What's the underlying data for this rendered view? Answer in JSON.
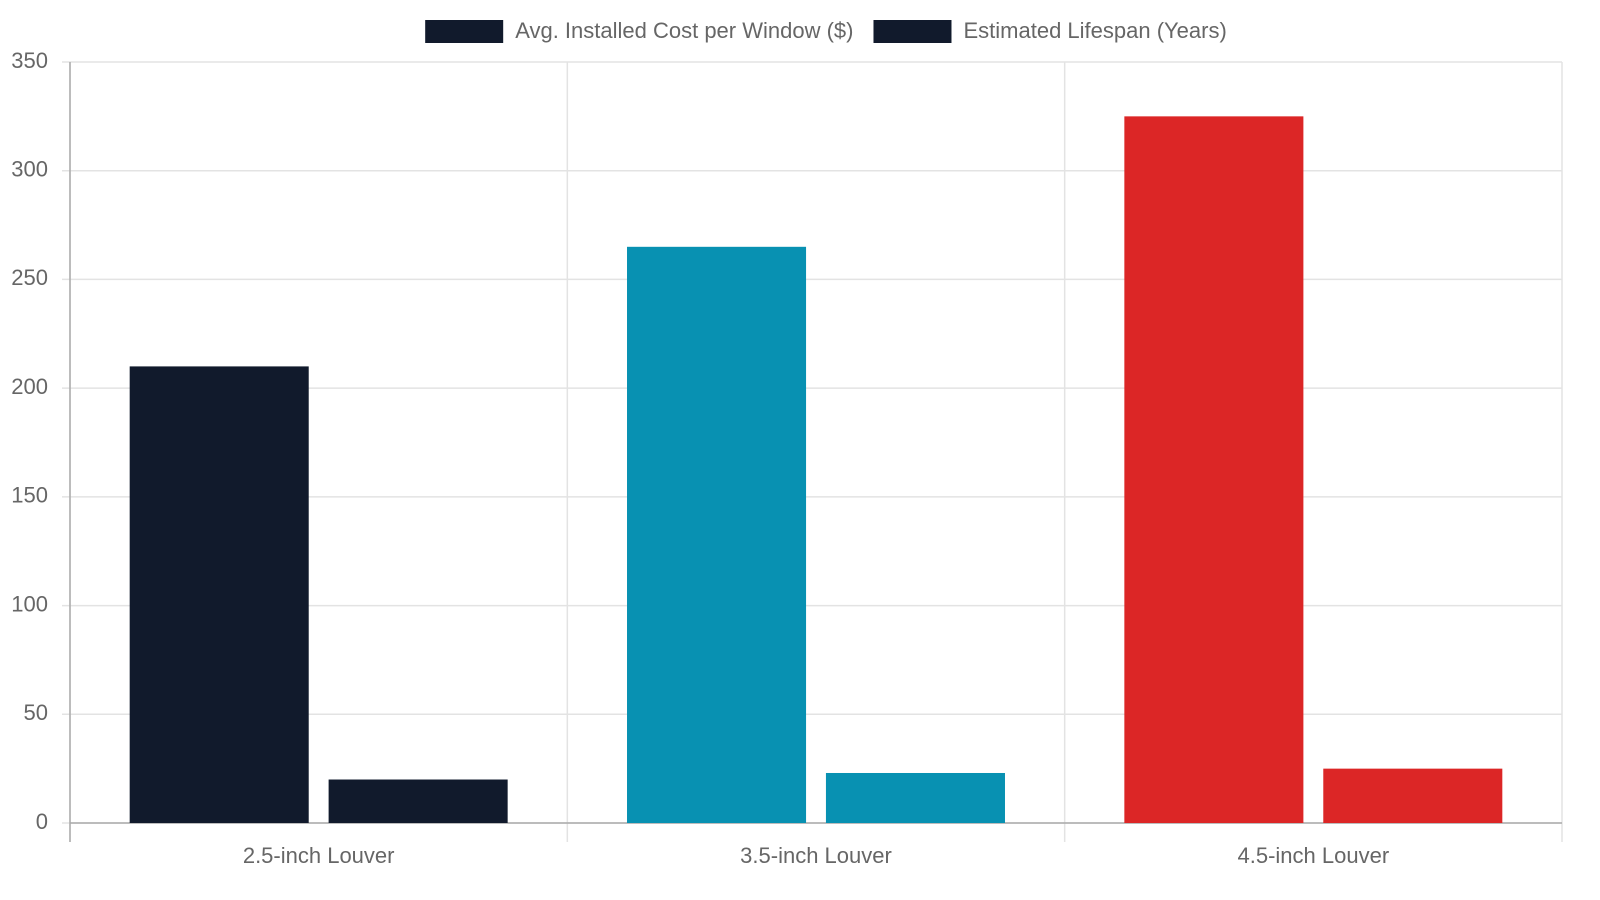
{
  "chart_data": {
    "type": "bar",
    "categories": [
      "2.5-inch Louver",
      "3.5-inch Louver",
      "4.5-inch Louver"
    ],
    "series": [
      {
        "name": "Avg. Installed Cost per Window ($)",
        "colors": [
          "#111a2c",
          "#0891b2",
          "#dc2626"
        ],
        "values": [
          210,
          265,
          325
        ]
      },
      {
        "name": "Estimated Lifespan (Years)",
        "colors": [
          "#111a2c",
          "#0891b2",
          "#dc2626"
        ],
        "values": [
          20,
          23,
          25
        ]
      }
    ],
    "ylim": [
      0,
      350
    ],
    "yticks": [
      0,
      50,
      100,
      150,
      200,
      250,
      300,
      350
    ],
    "grid": true,
    "legend": "top"
  }
}
